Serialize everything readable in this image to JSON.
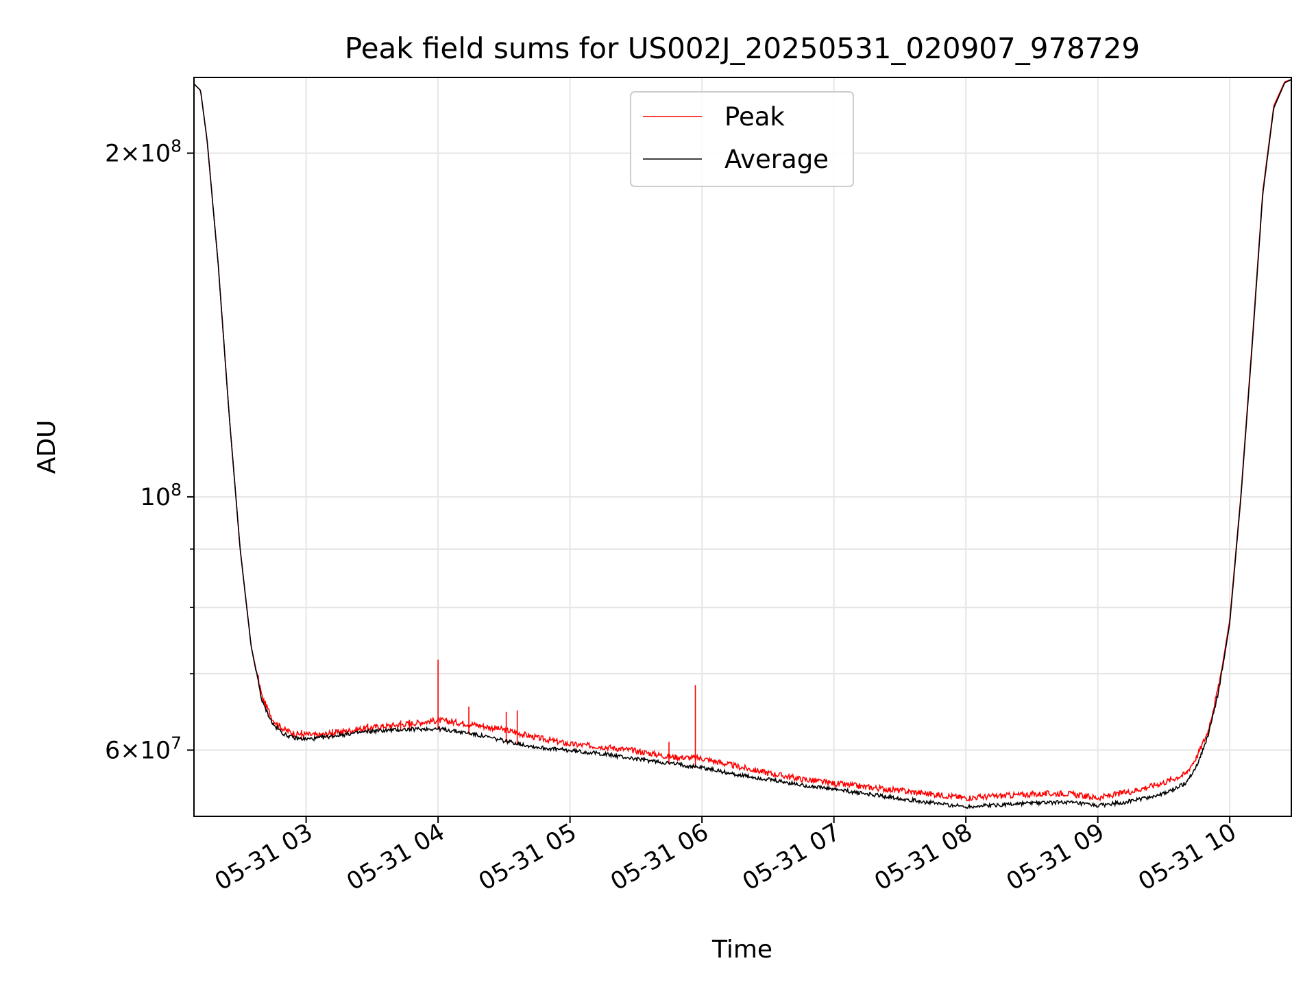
{
  "chart_data": {
    "type": "line",
    "title": "Peak field sums for US002J_20250531_020907_978729",
    "xlabel": "Time",
    "ylabel": "ADU",
    "xlim": [
      "2025-05-31 02:09",
      "2025-05-31 10:28"
    ],
    "ylim": [
      52500000,
      233000000
    ],
    "y_scale": "log",
    "grid": true,
    "legend_position": "top-center",
    "x_tick_labels": [
      "05-31 03",
      "05-31 04",
      "05-31 05",
      "05-31 06",
      "05-31 07",
      "05-31 08",
      "05-31 09",
      "05-31 10"
    ],
    "x_tick_times": [
      "2025-05-31 03:00",
      "2025-05-31 04:00",
      "2025-05-31 05:00",
      "2025-05-31 06:00",
      "2025-05-31 07:00",
      "2025-05-31 08:00",
      "2025-05-31 09:00",
      "2025-05-31 10:00"
    ],
    "y_ticks": [
      {
        "value": 60000000,
        "base": "6",
        "times": "×",
        "mantissa_base": "10",
        "exponent": "7"
      },
      {
        "value": 100000000,
        "base": "",
        "times": "",
        "mantissa_base": "10",
        "exponent": "8"
      },
      {
        "value": 200000000,
        "base": "2",
        "times": "×",
        "mantissa_base": "10",
        "exponent": "8"
      }
    ],
    "y_minor_ticks": [
      70000000,
      80000000,
      90000000
    ],
    "series": [
      {
        "name": "Peak",
        "color": "#ff0000",
        "x": [
          "2025-05-31 02:09",
          "2025-05-31 02:12",
          "2025-05-31 02:15",
          "2025-05-31 02:20",
          "2025-05-31 02:25",
          "2025-05-31 02:30",
          "2025-05-31 02:35",
          "2025-05-31 02:40",
          "2025-05-31 02:45",
          "2025-05-31 02:50",
          "2025-05-31 02:55",
          "2025-05-31 03:00",
          "2025-05-31 03:05",
          "2025-05-31 03:15",
          "2025-05-31 03:30",
          "2025-05-31 03:45",
          "2025-05-31 04:00",
          "2025-05-31 04:15",
          "2025-05-31 04:30",
          "2025-05-31 04:45",
          "2025-05-31 05:00",
          "2025-05-31 05:15",
          "2025-05-31 05:30",
          "2025-05-31 05:45",
          "2025-05-31 06:00",
          "2025-05-31 06:15",
          "2025-05-31 06:30",
          "2025-05-31 06:45",
          "2025-05-31 07:00",
          "2025-05-31 07:15",
          "2025-05-31 07:30",
          "2025-05-31 07:45",
          "2025-05-31 08:00",
          "2025-05-31 08:15",
          "2025-05-31 08:30",
          "2025-05-31 08:45",
          "2025-05-31 09:00",
          "2025-05-31 09:15",
          "2025-05-31 09:30",
          "2025-05-31 09:40",
          "2025-05-31 09:45",
          "2025-05-31 09:50",
          "2025-05-31 09:55",
          "2025-05-31 10:00",
          "2025-05-31 10:05",
          "2025-05-31 10:10",
          "2025-05-31 10:15",
          "2025-05-31 10:20",
          "2025-05-31 10:25",
          "2025-05-31 10:28"
        ],
        "y": [
          230000000,
          227000000,
          205000000,
          160000000,
          118000000,
          90000000,
          74000000,
          66500000,
          63500000,
          62300000,
          61800000,
          61700000,
          61600000,
          62000000,
          62600000,
          63000000,
          63500000,
          63000000,
          62300000,
          61300000,
          60500000,
          60200000,
          59700000,
          59000000,
          58800000,
          57900000,
          57100000,
          56400000,
          55900000,
          55500000,
          55100000,
          54700000,
          54300000,
          54500000,
          54700000,
          54800000,
          54300000,
          55000000,
          56000000,
          57000000,
          59000000,
          62000000,
          68000000,
          78000000,
          100000000,
          135000000,
          185000000,
          220000000,
          231000000,
          232000000
        ]
      },
      {
        "name": "Average",
        "color": "#000000",
        "x": [
          "2025-05-31 02:09",
          "2025-05-31 02:12",
          "2025-05-31 02:15",
          "2025-05-31 02:20",
          "2025-05-31 02:25",
          "2025-05-31 02:30",
          "2025-05-31 02:35",
          "2025-05-31 02:40",
          "2025-05-31 02:45",
          "2025-05-31 02:50",
          "2025-05-31 02:55",
          "2025-05-31 03:00",
          "2025-05-31 03:05",
          "2025-05-31 03:15",
          "2025-05-31 03:30",
          "2025-05-31 03:45",
          "2025-05-31 04:00",
          "2025-05-31 04:15",
          "2025-05-31 04:30",
          "2025-05-31 04:45",
          "2025-05-31 05:00",
          "2025-05-31 05:15",
          "2025-05-31 05:30",
          "2025-05-31 05:45",
          "2025-05-31 06:00",
          "2025-05-31 06:15",
          "2025-05-31 06:30",
          "2025-05-31 06:45",
          "2025-05-31 07:00",
          "2025-05-31 07:15",
          "2025-05-31 07:30",
          "2025-05-31 07:45",
          "2025-05-31 08:00",
          "2025-05-31 08:15",
          "2025-05-31 08:30",
          "2025-05-31 08:45",
          "2025-05-31 09:00",
          "2025-05-31 09:15",
          "2025-05-31 09:30",
          "2025-05-31 09:40",
          "2025-05-31 09:45",
          "2025-05-31 09:50",
          "2025-05-31 09:55",
          "2025-05-31 10:00",
          "2025-05-31 10:05",
          "2025-05-31 10:10",
          "2025-05-31 10:15",
          "2025-05-31 10:20",
          "2025-05-31 10:25",
          "2025-05-31 10:28"
        ],
        "y": [
          230000000,
          227000000,
          205000000,
          160000000,
          118000000,
          90000000,
          74000000,
          66000000,
          63000000,
          61800000,
          61300000,
          61200000,
          61300000,
          61700000,
          62200000,
          62400000,
          62500000,
          61900000,
          61000000,
          60200000,
          59800000,
          59400000,
          58800000,
          58300000,
          57800000,
          57000000,
          56400000,
          55800000,
          55300000,
          54800000,
          54300000,
          53800000,
          53400000,
          53600000,
          53800000,
          53900000,
          53500000,
          54000000,
          54800000,
          56000000,
          58000000,
          61500000,
          67500000,
          77500000,
          99500000,
          134000000,
          184000000,
          219000000,
          230500000,
          232000000
        ]
      }
    ],
    "spikes": [
      {
        "x": "2025-05-31 02:58",
        "y": 62500000
      },
      {
        "x": "2025-05-31 03:12",
        "y": 62600000
      },
      {
        "x": "2025-05-31 03:28",
        "y": 63300000
      },
      {
        "x": "2025-05-31 03:43",
        "y": 63700000
      },
      {
        "x": "2025-05-31 03:47",
        "y": 63800000
      },
      {
        "x": "2025-05-31 04:00",
        "y": 72000000
      },
      {
        "x": "2025-05-31 04:14",
        "y": 65500000
      },
      {
        "x": "2025-05-31 04:31",
        "y": 64800000
      },
      {
        "x": "2025-05-31 04:36",
        "y": 65000000
      },
      {
        "x": "2025-05-31 05:45",
        "y": 61000000
      },
      {
        "x": "2025-05-31 05:57",
        "y": 68400000
      }
    ]
  }
}
